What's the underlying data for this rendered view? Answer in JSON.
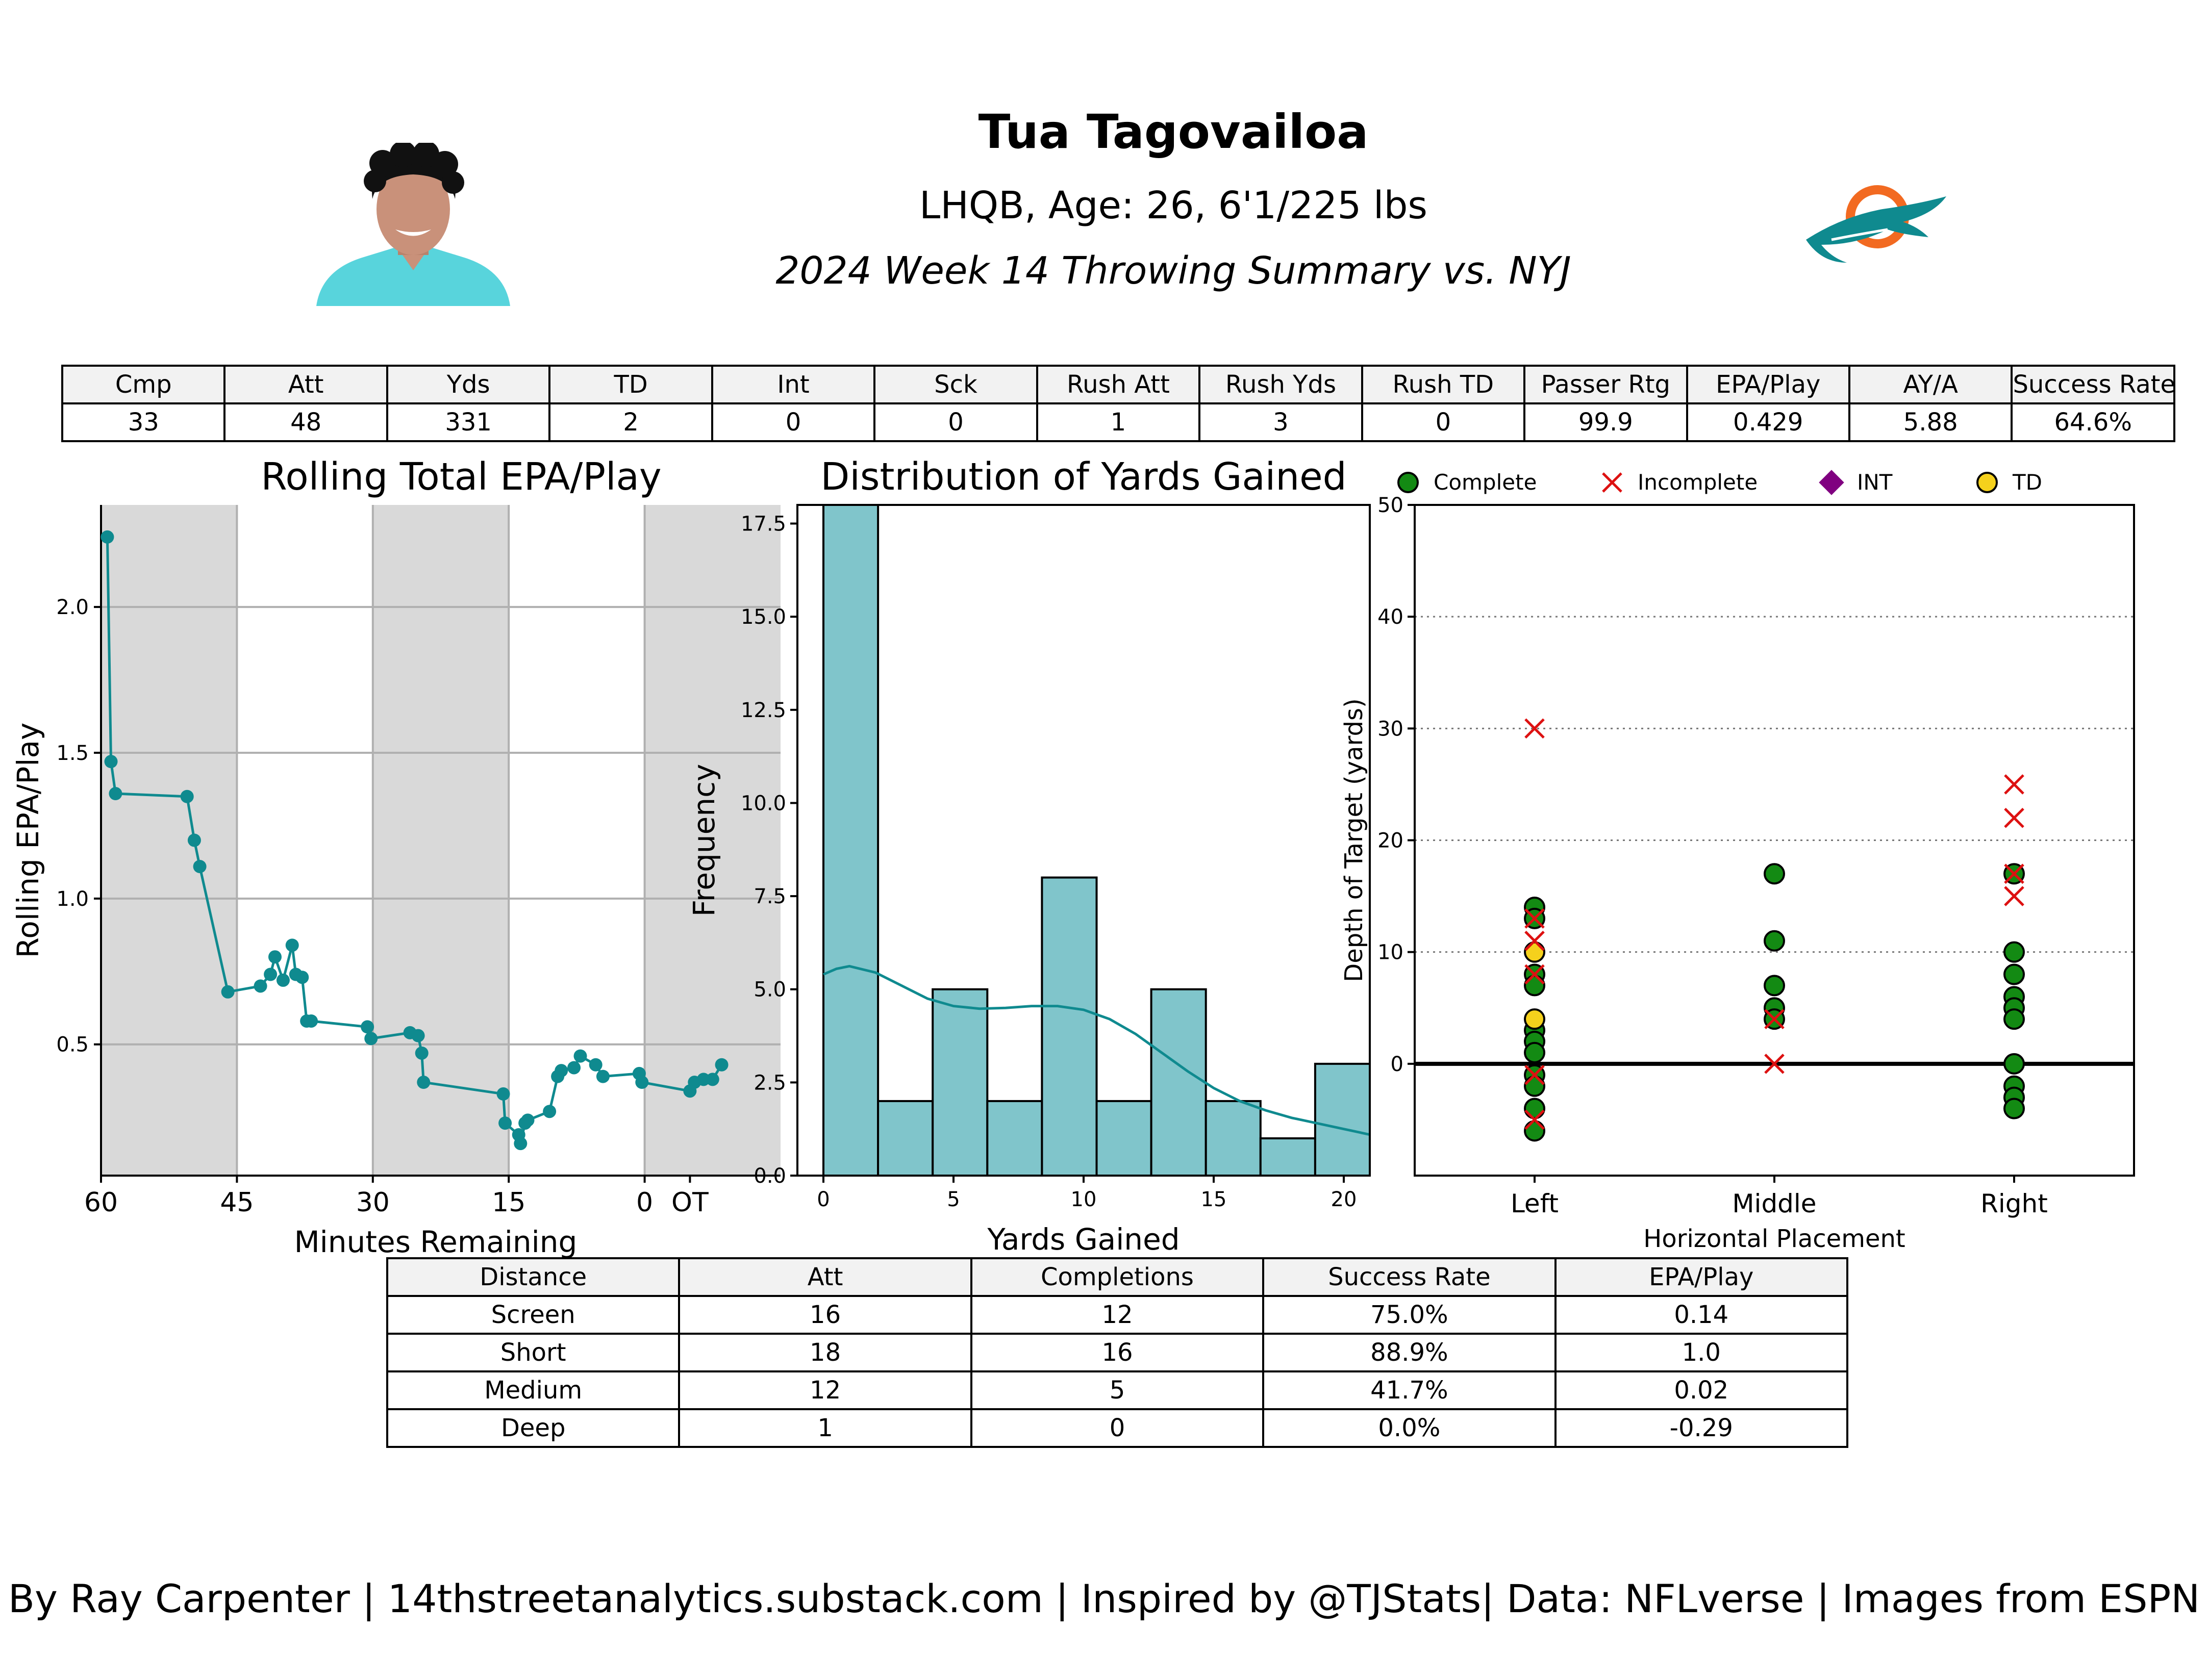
{
  "header": {
    "player_name": "Tua Tagovailoa",
    "bio": "LHQB, Age: 26, 6'1/225 lbs",
    "summary": "2024 Week 14 Throwing Summary vs. NYJ"
  },
  "colors": {
    "teal": "#0f8a8f",
    "hist_fill": "#80c5cb",
    "shade": "#d9d9d9",
    "complete": "#138a13",
    "incomplete": "#dd1111",
    "int": "#800080",
    "td": "#f5d11c",
    "aqua": "#58d4dc",
    "orange": "#f26a21"
  },
  "stats_table": {
    "headers": [
      "Cmp",
      "Att",
      "Yds",
      "TD",
      "Int",
      "Sck",
      "Rush Att",
      "Rush Yds",
      "Rush TD",
      "Passer Rtg",
      "EPA/Play",
      "AY/A",
      "Success Rate"
    ],
    "values": [
      "33",
      "48",
      "331",
      "2",
      "0",
      "0",
      "1",
      "3",
      "0",
      "99.9",
      "0.429",
      "5.88",
      "64.6%"
    ]
  },
  "distance_table": {
    "headers": [
      "Distance",
      "Att",
      "Completions",
      "Success Rate",
      "EPA/Play"
    ],
    "rows": [
      [
        "Screen",
        "16",
        "12",
        "75.0%",
        "0.14"
      ],
      [
        "Short",
        "18",
        "16",
        "88.9%",
        "1.0"
      ],
      [
        "Medium",
        "12",
        "5",
        "41.7%",
        "0.02"
      ],
      [
        "Deep",
        "1",
        "0",
        "0.0%",
        "-0.29"
      ]
    ]
  },
  "footer": "By Ray Carpenter | 14thstreetanalytics.substack.com | Inspired by @TJStats| Data: NFLverse | Images from ESPN",
  "chart_data": [
    {
      "type": "line",
      "title": "Rolling Total EPA/Play",
      "xlabel": "Minutes Remaining",
      "ylabel": "Rolling EPA/Play",
      "xlim": [
        60,
        -15
      ],
      "ylim": [
        0.05,
        2.35
      ],
      "x_ticks": [
        60,
        45,
        30,
        15,
        0,
        -5
      ],
      "x_tick_labels": [
        "60",
        "45",
        "30",
        "15",
        "0",
        "OT"
      ],
      "y_ticks": [
        0.5,
        1.0,
        1.5,
        2.0
      ],
      "y_tick_labels": [
        "0.5",
        "1.0",
        "1.5",
        "2.0"
      ],
      "grid": true,
      "shaded_quarters": [
        [
          60,
          45
        ],
        [
          30,
          15
        ],
        [
          0,
          -15
        ]
      ],
      "x": [
        59.3,
        58.9,
        58.4,
        50.5,
        49.7,
        49.1,
        46.0,
        42.4,
        41.3,
        40.8,
        39.9,
        38.9,
        38.5,
        37.8,
        37.3,
        36.8,
        30.6,
        30.2,
        25.9,
        25.0,
        24.6,
        24.4,
        15.6,
        15.4,
        13.9,
        13.7,
        13.2,
        12.9,
        10.5,
        9.6,
        9.2,
        7.8,
        7.1,
        5.4,
        4.6,
        0.6,
        0.3,
        -5.0,
        -5.5,
        -6.5,
        -7.5,
        -8.5
      ],
      "y": [
        2.24,
        1.47,
        1.36,
        1.35,
        1.2,
        1.11,
        0.68,
        0.7,
        0.74,
        0.8,
        0.72,
        0.84,
        0.74,
        0.73,
        0.58,
        0.58,
        0.56,
        0.52,
        0.54,
        0.53,
        0.47,
        0.37,
        0.33,
        0.23,
        0.19,
        0.16,
        0.23,
        0.24,
        0.27,
        0.39,
        0.41,
        0.42,
        0.46,
        0.43,
        0.39,
        0.4,
        0.37,
        0.34,
        0.37,
        0.38,
        0.38,
        0.43
      ]
    },
    {
      "type": "bar",
      "title": "Distribution of Yards Gained",
      "xlabel": "Yards Gained",
      "ylabel": "Frequency",
      "xlim": [
        -1,
        21
      ],
      "ylim": [
        0,
        18.0
      ],
      "x_ticks": [
        0,
        5,
        10,
        15,
        20
      ],
      "x_tick_labels": [
        "0",
        "5",
        "10",
        "15",
        "20"
      ],
      "y_ticks": [
        0,
        2.5,
        5.0,
        7.5,
        10.0,
        12.5,
        15.0,
        17.5
      ],
      "y_tick_labels": [
        "0.0",
        "2.5",
        "5.0",
        "7.5",
        "10.0",
        "12.5",
        "15.0",
        "17.5"
      ],
      "bin_edges": [
        0,
        2.1,
        4.2,
        6.3,
        8.4,
        10.5,
        12.6,
        14.7,
        16.8,
        18.9,
        21
      ],
      "values": [
        18,
        2,
        5,
        2,
        8,
        2,
        5,
        2,
        1,
        3
      ],
      "kde_x": [
        0,
        0.5,
        1,
        2,
        3,
        4,
        5,
        6,
        7,
        8,
        9,
        10,
        11,
        12,
        13,
        14,
        15,
        16,
        17,
        18,
        19,
        20,
        21
      ],
      "kde_y": [
        5.4,
        5.55,
        5.62,
        5.45,
        5.1,
        4.75,
        4.55,
        4.48,
        4.5,
        4.55,
        4.55,
        4.45,
        4.2,
        3.8,
        3.3,
        2.8,
        2.35,
        2.0,
        1.75,
        1.55,
        1.4,
        1.25,
        1.1
      ]
    },
    {
      "type": "scatter",
      "xlabel": "Horizontal Placement",
      "ylabel": "Depth of Target (yards)",
      "categories": [
        "Left",
        "Middle",
        "Right"
      ],
      "ylim": [
        -10,
        50
      ],
      "y_ticks": [
        0,
        10,
        20,
        30,
        40,
        50
      ],
      "y_tick_labels": [
        "0",
        "10",
        "20",
        "30",
        "40",
        "50"
      ],
      "legend": [
        "Complete",
        "Incomplete",
        "INT",
        "TD"
      ],
      "legend_position": "top",
      "series": [
        {
          "name": "Complete",
          "points": [
            [
              "Left",
              14
            ],
            [
              "Left",
              13
            ],
            [
              "Left",
              8
            ],
            [
              "Left",
              7
            ],
            [
              "Left",
              3
            ],
            [
              "Left",
              2
            ],
            [
              "Left",
              1
            ],
            [
              "Left",
              -1
            ],
            [
              "Left",
              -2
            ],
            [
              "Left",
              -4
            ],
            [
              "Left",
              -6
            ],
            [
              "Middle",
              17
            ],
            [
              "Middle",
              11
            ],
            [
              "Middle",
              7
            ],
            [
              "Middle",
              5
            ],
            [
              "Middle",
              4
            ],
            [
              "Right",
              17
            ],
            [
              "Right",
              10
            ],
            [
              "Right",
              8
            ],
            [
              "Right",
              6
            ],
            [
              "Right",
              5
            ],
            [
              "Right",
              4
            ],
            [
              "Right",
              0
            ],
            [
              "Right",
              -2
            ],
            [
              "Right",
              -3
            ],
            [
              "Right",
              -4
            ]
          ]
        },
        {
          "name": "Incomplete",
          "points": [
            [
              "Left",
              30
            ],
            [
              "Left",
              13
            ],
            [
              "Left",
              11
            ],
            [
              "Left",
              8
            ],
            [
              "Left",
              -1
            ],
            [
              "Left",
              -5
            ],
            [
              "Middle",
              4
            ],
            [
              "Middle",
              0
            ],
            [
              "Right",
              25
            ],
            [
              "Right",
              22
            ],
            [
              "Right",
              17
            ],
            [
              "Right",
              15
            ]
          ]
        },
        {
          "name": "INT",
          "points": []
        },
        {
          "name": "TD",
          "points": [
            [
              "Left",
              10
            ],
            [
              "Left",
              4
            ]
          ]
        }
      ]
    }
  ]
}
